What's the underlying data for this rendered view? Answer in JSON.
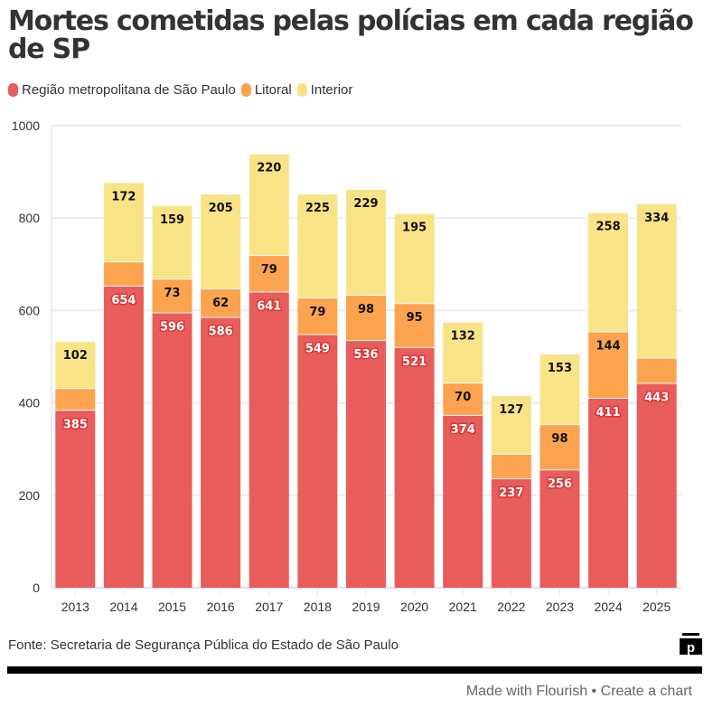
{
  "chart_data": {
    "type": "bar",
    "stacked": true,
    "title": "Mortes cometidas pelas polícias em cada região de SP",
    "xlabel": "",
    "ylabel": "",
    "ylim": [
      0,
      1000
    ],
    "yticks": [
      0,
      200,
      400,
      600,
      800,
      1000
    ],
    "grid": true,
    "legend_position": "top-left",
    "categories": [
      "2013",
      "2014",
      "2015",
      "2016",
      "2017",
      "2018",
      "2019",
      "2020",
      "2021",
      "2022",
      "2023",
      "2024",
      "2025"
    ],
    "series": [
      {
        "name": "Região metropolitana de São Paulo",
        "color": "#E95C5C",
        "label_color": "#ffffff",
        "values": [
          385,
          654,
          596,
          586,
          641,
          549,
          536,
          521,
          374,
          237,
          256,
          411,
          443
        ],
        "labels_shown": [
          true,
          true,
          true,
          true,
          true,
          true,
          true,
          true,
          true,
          true,
          true,
          true,
          true
        ]
      },
      {
        "name": "Litoral",
        "color": "#FCA350",
        "label_color": "#111111",
        "values": [
          47,
          52,
          73,
          62,
          79,
          79,
          98,
          95,
          70,
          53,
          98,
          144,
          55
        ],
        "labels_shown": [
          false,
          false,
          true,
          true,
          true,
          true,
          true,
          true,
          true,
          false,
          true,
          true,
          false
        ]
      },
      {
        "name": "Interior",
        "color": "#F9E387",
        "label_color": "#111111",
        "values": [
          102,
          172,
          159,
          205,
          220,
          225,
          229,
          195,
          132,
          127,
          153,
          258,
          334
        ],
        "labels_shown": [
          true,
          true,
          true,
          true,
          true,
          true,
          true,
          true,
          true,
          true,
          true,
          true,
          true
        ]
      }
    ]
  },
  "legend": {
    "items": [
      {
        "label": "Região metropolitana de São Paulo",
        "color": "#E95C5C"
      },
      {
        "label": "Litoral",
        "color": "#FCA350"
      },
      {
        "label": "Interior",
        "color": "#F9E387"
      }
    ]
  },
  "footer": {
    "source": "Fonte: Secretaria de Segurança Pública do Estado de São Paulo",
    "made_with": "Made with Flourish",
    "separator": " • ",
    "create_chart": "Create a chart",
    "logo_letter": "p"
  }
}
